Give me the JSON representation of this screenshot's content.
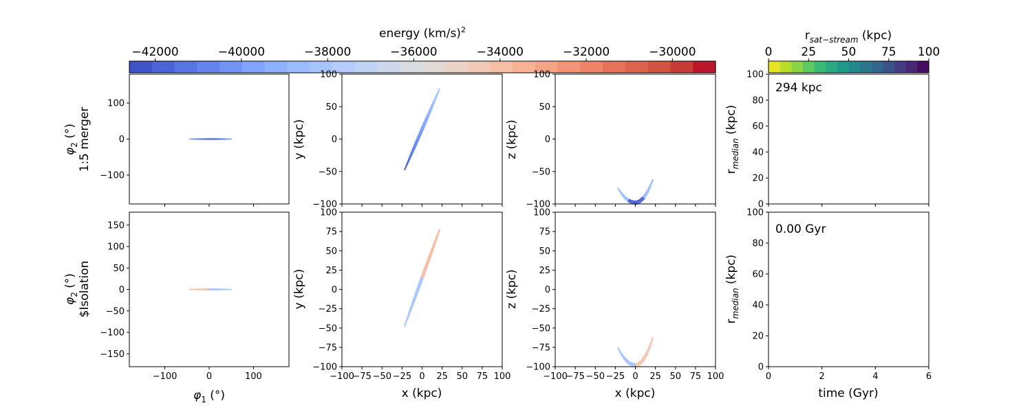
{
  "figure": {
    "energy_colorbar": {
      "label": "energy (km/s)",
      "label_exponent": "2",
      "ticks": [
        -42000,
        -40000,
        -38000,
        -36000,
        -34000,
        -32000,
        -30000
      ],
      "tick_labels": [
        "−42000",
        "−40000",
        "−38000",
        "−36000",
        "−34000",
        "−32000",
        "−30000"
      ],
      "range": [
        -42600,
        -29000
      ],
      "colormap": "coolwarm",
      "colors": [
        "#3b4cc0",
        "#4f69d9",
        "#6788ee",
        "#81a4fb",
        "#9abbff",
        "#b1cbfc",
        "#c9d7f0",
        "#dddcdc",
        "#edd1c2",
        "#f7bca1",
        "#f6a385",
        "#ee8468",
        "#de6650",
        "#ca4a3c",
        "#b40426"
      ]
    },
    "distance_colorbar": {
      "label_prefix": "r",
      "label_subscript": "sat−stream",
      "label_suffix": " (kpc)",
      "ticks": [
        0,
        25,
        50,
        75,
        100
      ],
      "range": [
        0,
        100
      ],
      "colormap": "viridis_r",
      "colors": [
        "#fde725",
        "#b5de2b",
        "#6ece58",
        "#35b779",
        "#1f9e89",
        "#26828e",
        "#31688e",
        "#3e4989",
        "#482878",
        "#440154"
      ]
    },
    "row_labels": [
      {
        "line1": "φ",
        "sub": "2",
        "unit": " (°)",
        "line2": "1:5 merger"
      },
      {
        "line1": "φ",
        "sub": "2",
        "unit": " (°)",
        "line2": "$Isolation"
      }
    ],
    "axis_labels": {
      "phi1": "φ",
      "phi1_sub": "1",
      "phi1_unit": " (°)",
      "x": "x (kpc)",
      "y": "y (kpc)",
      "z": "z (kpc)",
      "rmed_prefix": "r",
      "rmed_sub": "median",
      "rmed_suffix": " (kpc)",
      "time": "time (Gyr)"
    },
    "annotations": {
      "distance": "294 kpc",
      "time": "0.00 Gyr"
    }
  },
  "chart_data": [
    {
      "type": "scatter",
      "panel": "phi1-phi2, 1:5 merger",
      "xlim": [
        -180,
        180
      ],
      "ylim": [
        -180,
        180
      ],
      "yticks": [
        -100,
        0,
        100
      ],
      "stream": {
        "phi1_range": [
          -45,
          50
        ],
        "phi2": 0,
        "color_by_energy": "blue"
      }
    },
    {
      "type": "scatter",
      "panel": "x-y, 1:5 merger",
      "xlim": [
        -100,
        100
      ],
      "ylim": [
        -100,
        100
      ],
      "yticks": [
        -100,
        -50,
        0,
        50,
        100
      ],
      "stream": {
        "from": [
          -22,
          -48
        ],
        "to": [
          22,
          78
        ],
        "color_by_energy": "blue"
      }
    },
    {
      "type": "scatter",
      "panel": "x-z, 1:5 merger",
      "xlim": [
        -100,
        100
      ],
      "ylim": [
        -100,
        100
      ],
      "yticks": [
        -100,
        -50,
        0,
        50,
        100
      ],
      "stream": {
        "x_range": [
          -22,
          22
        ],
        "z_vertex": [
          0,
          -98
        ],
        "z_ends": [
          -75,
          -62
        ],
        "color_by_energy": "blue"
      }
    },
    {
      "type": "line",
      "panel": "r_median vs time, 1:5 merger",
      "xlim": [
        0,
        6
      ],
      "ylim": [
        0,
        100
      ],
      "yticks": [
        0,
        20,
        40,
        60,
        80,
        100
      ],
      "series": []
    },
    {
      "type": "scatter",
      "panel": "phi1-phi2, isolation",
      "xlim": [
        -180,
        180
      ],
      "ylim": [
        -180,
        180
      ],
      "xticks": [
        -100,
        0,
        100
      ],
      "yticks": [
        -150,
        -100,
        -50,
        0,
        50,
        100,
        150
      ],
      "stream": {
        "phi1_range": [
          -45,
          50
        ],
        "phi2": 0,
        "color_by_energy": "red-blue"
      }
    },
    {
      "type": "scatter",
      "panel": "x-y, isolation",
      "xlim": [
        -100,
        100
      ],
      "ylim": [
        -100,
        100
      ],
      "xticks": [
        -100,
        -75,
        -50,
        -25,
        0,
        25,
        50,
        75,
        100
      ],
      "yticks": [
        -100,
        -75,
        -50,
        -25,
        0,
        25,
        50,
        75,
        100
      ],
      "stream": {
        "from": [
          -22,
          -48
        ],
        "to": [
          22,
          78
        ],
        "color_by_energy": "red-blue"
      }
    },
    {
      "type": "scatter",
      "panel": "x-z, isolation",
      "xlim": [
        -100,
        100
      ],
      "ylim": [
        -100,
        100
      ],
      "xticks": [
        -100,
        -75,
        -50,
        -25,
        0,
        25,
        50,
        75,
        100
      ],
      "yticks": [
        -100,
        -75,
        -50,
        -25,
        0,
        25,
        50,
        75,
        100
      ],
      "stream": {
        "x_range": [
          -22,
          22
        ],
        "z_vertex": [
          0,
          -98
        ],
        "z_ends": [
          -75,
          -62
        ],
        "color_by_energy": "red-blue"
      }
    },
    {
      "type": "line",
      "panel": "r_median vs time, isolation",
      "xlim": [
        0,
        6
      ],
      "ylim": [
        0,
        100
      ],
      "xticks": [
        0,
        2,
        4,
        6
      ],
      "yticks": [
        0,
        20,
        40,
        60,
        80,
        100
      ],
      "series": []
    }
  ]
}
